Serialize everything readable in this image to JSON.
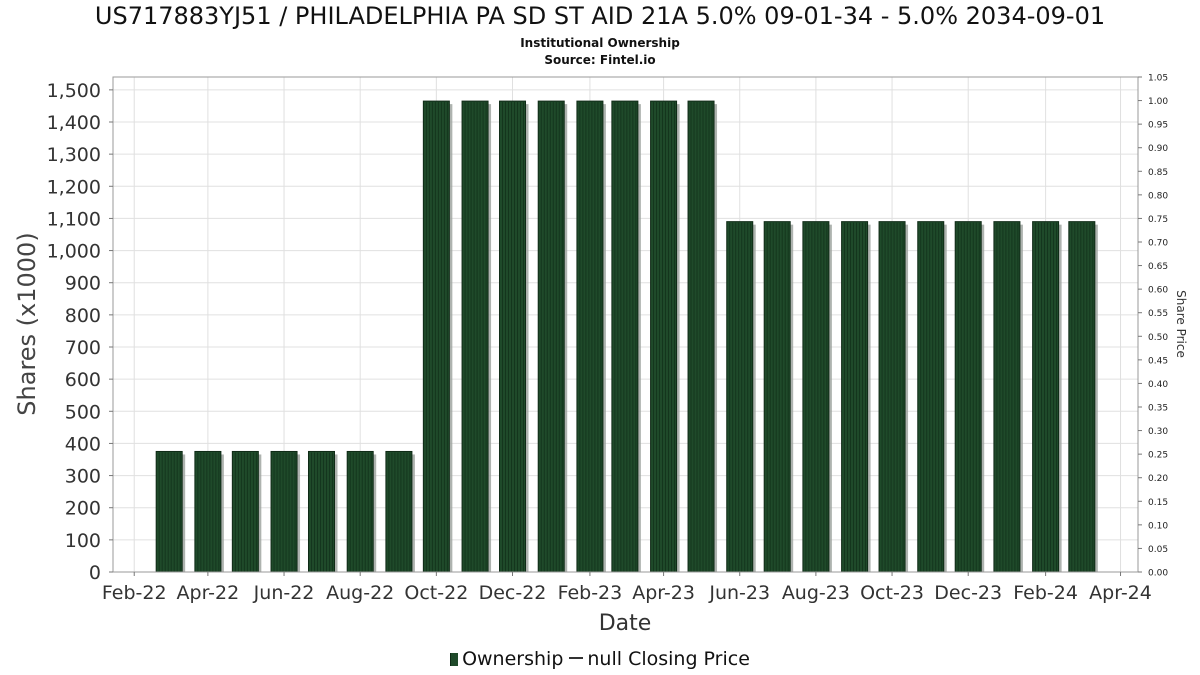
{
  "chart_data": {
    "type": "bar",
    "title": "US717883YJ51 / PHILADELPHIA PA SD ST AID 21A 5.0% 09-01-34 - 5.0% 2034-09-01",
    "subtitle": "Institutional Ownership",
    "source": "Source: Fintel.io",
    "xlabel": "Date",
    "ylabel": "Shares (x1000)",
    "y2label": "Share Price",
    "x_tick_labels": [
      "Feb-22",
      "Apr-22",
      "Jun-22",
      "Aug-22",
      "Oct-22",
      "Dec-22",
      "Feb-23",
      "Apr-23",
      "Jun-23",
      "Aug-23",
      "Oct-23",
      "Dec-23",
      "Feb-24",
      "Apr-24"
    ],
    "y_ticks": [
      "0",
      "100",
      "200",
      "300",
      "400",
      "500",
      "600",
      "700",
      "800",
      "900",
      "1,000",
      "1,100",
      "1,200",
      "1,300",
      "1,400",
      "1,500"
    ],
    "y2_ticks": [
      "0.00",
      "0.05",
      "0.10",
      "0.15",
      "0.20",
      "0.25",
      "0.30",
      "0.35",
      "0.40",
      "0.45",
      "0.50",
      "0.55",
      "0.60",
      "0.65",
      "0.70",
      "0.75",
      "0.80",
      "0.85",
      "0.90",
      "0.95",
      "1.00",
      "1.05"
    ],
    "ylim": [
      0,
      1540
    ],
    "y2lim": [
      0,
      1.05
    ],
    "xlim": [
      "2022-01-15",
      "2024-04-15"
    ],
    "grid": true,
    "legend_placement": "bottom",
    "colors": {
      "bar": "#1f4a2a",
      "bar_shadow": "#9aa09b",
      "grid": "#e0e0e0"
    },
    "series": [
      {
        "name": "Ownership",
        "x": [
          "2022-03-01",
          "2022-04-01",
          "2022-05-01",
          "2022-06-01",
          "2022-07-01",
          "2022-08-01",
          "2022-09-01",
          "2022-10-01",
          "2022-11-01",
          "2022-12-01",
          "2023-01-01",
          "2023-02-01",
          "2023-03-01",
          "2023-04-01",
          "2023-05-01",
          "2023-06-01",
          "2023-07-01",
          "2023-08-01",
          "2023-09-01",
          "2023-10-01",
          "2023-11-01",
          "2023-12-01",
          "2024-01-01",
          "2024-02-01",
          "2024-03-01"
        ],
        "values": [
          375,
          375,
          375,
          375,
          375,
          375,
          375,
          1465,
          1465,
          1465,
          1465,
          1465,
          1465,
          1465,
          1465,
          1090,
          1090,
          1090,
          1090,
          1090,
          1090,
          1090,
          1090,
          1090,
          1090
        ]
      }
    ],
    "legend": {
      "ownership_label": "Ownership",
      "price_label": "null Closing Price"
    }
  }
}
